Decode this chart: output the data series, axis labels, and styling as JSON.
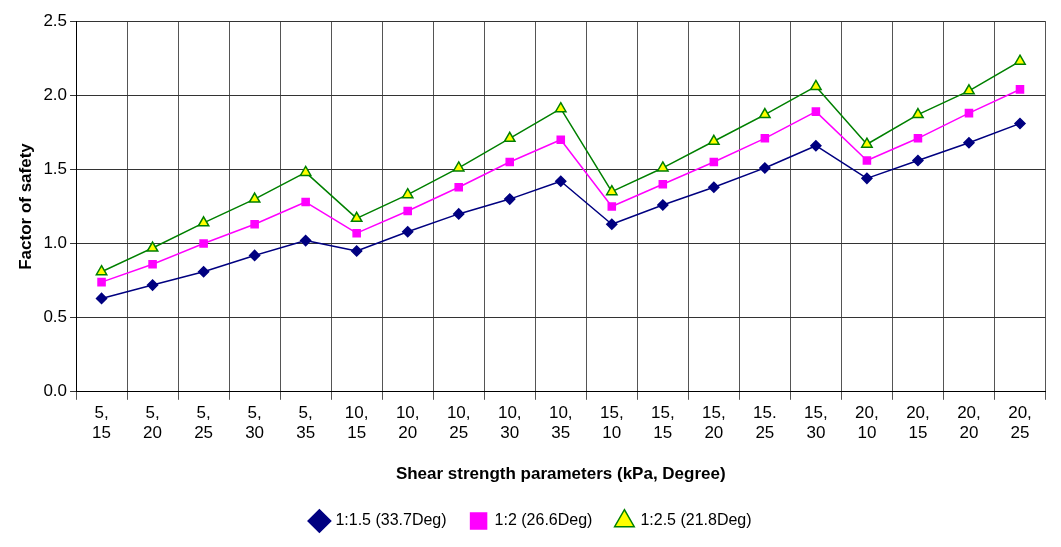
{
  "chart_data": {
    "type": "line",
    "xlabel": "Shear strength parameters (kPa, Degree)",
    "ylabel": "Factor of safety",
    "categories": [
      "5, 15",
      "5, 20",
      "5, 25",
      "5, 30",
      "5, 35",
      "10, 15",
      "10, 20",
      "10, 25",
      "10, 30",
      "10, 35",
      "15, 10",
      "15, 15",
      "15, 20",
      "15. 25",
      "15, 30",
      "20, 10",
      "20, 15",
      "20, 20",
      "20, 25"
    ],
    "series": [
      {
        "name": "1:1.5 (33.7Deg)",
        "color": "#000080",
        "marker": "diamond",
        "values": [
          0.63,
          0.72,
          0.81,
          0.92,
          1.02,
          0.95,
          1.08,
          1.2,
          1.3,
          1.42,
          1.13,
          1.26,
          1.38,
          1.51,
          1.66,
          1.44,
          1.56,
          1.68,
          1.81
        ]
      },
      {
        "name": "1:2 (26.6Deg)",
        "color": "#ff00ff",
        "marker": "square",
        "values": [
          0.74,
          0.86,
          1.0,
          1.13,
          1.28,
          1.07,
          1.22,
          1.38,
          1.55,
          1.7,
          1.25,
          1.4,
          1.55,
          1.71,
          1.89,
          1.56,
          1.71,
          1.88,
          2.04
        ]
      },
      {
        "name": "1:2.5 (21.8Deg)",
        "color": "#008000",
        "marker": "triangle",
        "values": [
          0.81,
          0.97,
          1.14,
          1.3,
          1.48,
          1.17,
          1.33,
          1.51,
          1.71,
          1.91,
          1.35,
          1.51,
          1.69,
          1.87,
          2.06,
          1.67,
          1.87,
          2.03,
          2.23
        ]
      }
    ],
    "ylim": [
      0,
      2.5
    ],
    "yticks": [
      {
        "value": 0,
        "label": "0.0"
      },
      {
        "value": 0.5,
        "label": "0.5"
      },
      {
        "value": 1,
        "label": "1.0"
      },
      {
        "value": 1.5,
        "label": "1.5"
      },
      {
        "value": 2,
        "label": "2.0"
      },
      {
        "value": 2.5,
        "label": "2.5"
      }
    ],
    "grid": true,
    "legend": "bottom",
    "line_style": "solid"
  }
}
